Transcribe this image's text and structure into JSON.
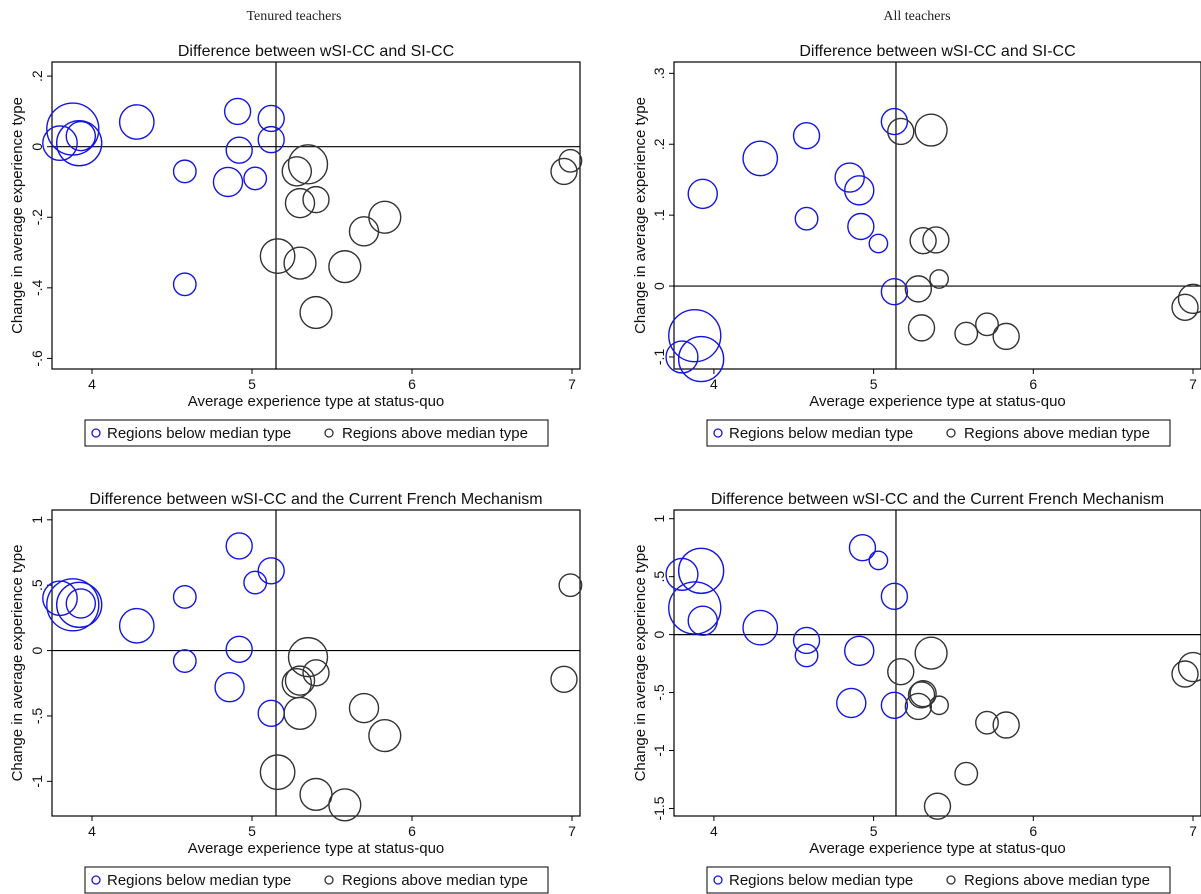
{
  "figure": {
    "column_titles": [
      "Tenured teachers",
      "All teachers"
    ]
  },
  "legend": {
    "below_label": "Regions below median type",
    "above_label": "Regions above median type"
  },
  "colors": {
    "below": "#1515e0",
    "above": "#333333",
    "frame": "#000000"
  },
  "chart_data": [
    {
      "type": "scatter",
      "title": "Difference between wSI-CC and SI-CC",
      "xlabel": "Average experience type at status-quo",
      "ylabel": "Change in average experience type",
      "xlim": [
        3.75,
        7.05
      ],
      "ylim": [
        -0.63,
        0.24
      ],
      "xticks": [
        4,
        5,
        6,
        7
      ],
      "yticks": [
        -0.6,
        -0.4,
        -0.2,
        0,
        0.2
      ],
      "ytick_labels": [
        "-.6",
        "-.4",
        "-.2",
        "0",
        ".2"
      ],
      "ref_x": 5.15,
      "ref_y": 0,
      "points": [
        {
          "x": 3.8,
          "y": 0.01,
          "w": 0.7,
          "group": "below"
        },
        {
          "x": 3.88,
          "y": 0.05,
          "w": 1.6,
          "group": "below"
        },
        {
          "x": 3.92,
          "y": 0.01,
          "w": 1.2,
          "group": "below"
        },
        {
          "x": 3.93,
          "y": 0.03,
          "w": 0.5,
          "group": "below"
        },
        {
          "x": 4.28,
          "y": 0.07,
          "w": 0.7,
          "group": "below"
        },
        {
          "x": 4.58,
          "y": -0.07,
          "w": 0.3,
          "group": "below"
        },
        {
          "x": 4.58,
          "y": -0.39,
          "w": 0.3,
          "group": "below"
        },
        {
          "x": 4.85,
          "y": -0.1,
          "w": 0.5,
          "group": "below"
        },
        {
          "x": 4.91,
          "y": 0.1,
          "w": 0.4,
          "group": "below"
        },
        {
          "x": 4.92,
          "y": -0.01,
          "w": 0.4,
          "group": "below"
        },
        {
          "x": 5.02,
          "y": -0.09,
          "w": 0.3,
          "group": "below"
        },
        {
          "x": 5.12,
          "y": 0.08,
          "w": 0.4,
          "group": "below"
        },
        {
          "x": 5.12,
          "y": 0.02,
          "w": 0.4,
          "group": "below"
        },
        {
          "x": 5.16,
          "y": -0.31,
          "w": 0.7,
          "group": "above"
        },
        {
          "x": 5.28,
          "y": -0.07,
          "w": 0.5,
          "group": "above"
        },
        {
          "x": 5.3,
          "y": -0.16,
          "w": 0.5,
          "group": "above"
        },
        {
          "x": 5.3,
          "y": -0.33,
          "w": 0.6,
          "group": "above"
        },
        {
          "x": 5.35,
          "y": -0.05,
          "w": 0.9,
          "group": "above"
        },
        {
          "x": 5.4,
          "y": -0.15,
          "w": 0.4,
          "group": "above"
        },
        {
          "x": 5.4,
          "y": -0.47,
          "w": 0.6,
          "group": "above"
        },
        {
          "x": 5.58,
          "y": -0.34,
          "w": 0.6,
          "group": "above"
        },
        {
          "x": 5.7,
          "y": -0.24,
          "w": 0.5,
          "group": "above"
        },
        {
          "x": 5.83,
          "y": -0.2,
          "w": 0.6,
          "group": "above"
        },
        {
          "x": 6.95,
          "y": -0.07,
          "w": 0.4,
          "group": "above"
        },
        {
          "x": 6.99,
          "y": -0.04,
          "w": 0.3,
          "group": "above"
        }
      ]
    },
    {
      "type": "scatter",
      "title": "Difference between wSI-CC and SI-CC",
      "xlabel": "Average experience type at status-quo",
      "ylabel": "Change in average experience type",
      "xlim": [
        3.75,
        7.05
      ],
      "ylim": [
        -0.117,
        0.316
      ],
      "xticks": [
        4,
        5,
        6,
        7
      ],
      "yticks": [
        -0.1,
        0,
        0.1,
        0.2,
        0.3
      ],
      "ytick_labels": [
        "-.1",
        "0",
        ".1",
        ".2",
        ".3"
      ],
      "ref_x": 5.14,
      "ref_y": 0,
      "points": [
        {
          "x": 3.8,
          "y": -0.1,
          "w": 0.6,
          "group": "below"
        },
        {
          "x": 3.88,
          "y": -0.07,
          "w": 1.6,
          "group": "below"
        },
        {
          "x": 3.92,
          "y": -0.103,
          "w": 1.2,
          "group": "below"
        },
        {
          "x": 3.93,
          "y": 0.13,
          "w": 0.5,
          "group": "below"
        },
        {
          "x": 4.29,
          "y": 0.18,
          "w": 0.7,
          "group": "below"
        },
        {
          "x": 4.58,
          "y": 0.212,
          "w": 0.4,
          "group": "below"
        },
        {
          "x": 4.58,
          "y": 0.095,
          "w": 0.3,
          "group": "below"
        },
        {
          "x": 4.85,
          "y": 0.153,
          "w": 0.5,
          "group": "below"
        },
        {
          "x": 4.91,
          "y": 0.135,
          "w": 0.5,
          "group": "below"
        },
        {
          "x": 4.92,
          "y": 0.084,
          "w": 0.4,
          "group": "below"
        },
        {
          "x": 5.03,
          "y": 0.06,
          "w": 0.2,
          "group": "below"
        },
        {
          "x": 5.13,
          "y": 0.232,
          "w": 0.4,
          "group": "below"
        },
        {
          "x": 5.13,
          "y": -0.008,
          "w": 0.4,
          "group": "below"
        },
        {
          "x": 5.17,
          "y": 0.218,
          "w": 0.4,
          "group": "above"
        },
        {
          "x": 5.28,
          "y": -0.004,
          "w": 0.4,
          "group": "above"
        },
        {
          "x": 5.3,
          "y": -0.059,
          "w": 0.4,
          "group": "above"
        },
        {
          "x": 5.31,
          "y": 0.064,
          "w": 0.4,
          "group": "above"
        },
        {
          "x": 5.36,
          "y": 0.22,
          "w": 0.6,
          "group": "above"
        },
        {
          "x": 5.39,
          "y": 0.065,
          "w": 0.4,
          "group": "above"
        },
        {
          "x": 5.41,
          "y": 0.01,
          "w": 0.2,
          "group": "above"
        },
        {
          "x": 5.58,
          "y": -0.067,
          "w": 0.3,
          "group": "above"
        },
        {
          "x": 5.71,
          "y": -0.054,
          "w": 0.3,
          "group": "above"
        },
        {
          "x": 5.83,
          "y": -0.071,
          "w": 0.4,
          "group": "above"
        },
        {
          "x": 6.95,
          "y": -0.03,
          "w": 0.4,
          "group": "above"
        },
        {
          "x": 7.0,
          "y": -0.018,
          "w": 0.5,
          "group": "above"
        }
      ]
    },
    {
      "type": "scatter",
      "title": "Difference between wSI-CC and the Current French Mechanism",
      "xlabel": "Average experience type at status-quo",
      "ylabel": "Change in average experience type",
      "xlim": [
        3.75,
        7.05
      ],
      "ylim": [
        -1.265,
        1.075
      ],
      "xticks": [
        4,
        5,
        6,
        7
      ],
      "yticks": [
        -1,
        -0.5,
        0,
        0.5,
        1
      ],
      "ytick_labels": [
        "-1",
        "-.5",
        "0",
        ".5",
        "1"
      ],
      "ref_x": 5.15,
      "ref_y": 0,
      "points": [
        {
          "x": 3.8,
          "y": 0.4,
          "w": 0.7,
          "group": "below"
        },
        {
          "x": 3.88,
          "y": 0.35,
          "w": 1.6,
          "group": "below"
        },
        {
          "x": 3.92,
          "y": 0.35,
          "w": 1.2,
          "group": "below"
        },
        {
          "x": 3.93,
          "y": 0.36,
          "w": 0.5,
          "group": "below"
        },
        {
          "x": 4.28,
          "y": 0.19,
          "w": 0.7,
          "group": "below"
        },
        {
          "x": 4.58,
          "y": 0.41,
          "w": 0.3,
          "group": "below"
        },
        {
          "x": 4.58,
          "y": -0.08,
          "w": 0.3,
          "group": "below"
        },
        {
          "x": 4.86,
          "y": -0.28,
          "w": 0.5,
          "group": "below"
        },
        {
          "x": 4.92,
          "y": 0.8,
          "w": 0.4,
          "group": "below"
        },
        {
          "x": 4.92,
          "y": 0.01,
          "w": 0.4,
          "group": "below"
        },
        {
          "x": 5.02,
          "y": 0.52,
          "w": 0.3,
          "group": "below"
        },
        {
          "x": 5.12,
          "y": 0.61,
          "w": 0.4,
          "group": "below"
        },
        {
          "x": 5.12,
          "y": -0.48,
          "w": 0.4,
          "group": "below"
        },
        {
          "x": 5.16,
          "y": -0.93,
          "w": 0.7,
          "group": "above"
        },
        {
          "x": 5.28,
          "y": -0.25,
          "w": 0.5,
          "group": "above"
        },
        {
          "x": 5.3,
          "y": -0.23,
          "w": 0.5,
          "group": "above"
        },
        {
          "x": 5.3,
          "y": -0.48,
          "w": 0.6,
          "group": "above"
        },
        {
          "x": 5.35,
          "y": -0.05,
          "w": 0.9,
          "group": "above"
        },
        {
          "x": 5.4,
          "y": -0.17,
          "w": 0.4,
          "group": "above"
        },
        {
          "x": 5.4,
          "y": -1.1,
          "w": 0.6,
          "group": "above"
        },
        {
          "x": 5.58,
          "y": -1.18,
          "w": 0.6,
          "group": "above"
        },
        {
          "x": 5.7,
          "y": -0.44,
          "w": 0.5,
          "group": "above"
        },
        {
          "x": 5.83,
          "y": -0.65,
          "w": 0.6,
          "group": "above"
        },
        {
          "x": 6.95,
          "y": -0.22,
          "w": 0.4,
          "group": "above"
        },
        {
          "x": 6.99,
          "y": 0.5,
          "w": 0.3,
          "group": "above"
        }
      ]
    },
    {
      "type": "scatter",
      "title": "Difference between wSI-CC and the Current French Mechanism",
      "xlabel": "Average experience type at status-quo",
      "ylabel": "Change in average experience type",
      "xlim": [
        3.75,
        7.05
      ],
      "ylim": [
        -1.565,
        1.075
      ],
      "xticks": [
        4,
        5,
        6,
        7
      ],
      "yticks": [
        -1.5,
        -1,
        -0.5,
        0,
        0.5,
        1
      ],
      "ytick_labels": [
        "-1.5",
        "-1",
        "-.5",
        "0",
        ".5",
        "1"
      ],
      "ref_x": 5.14,
      "ref_y": 0,
      "points": [
        {
          "x": 3.8,
          "y": 0.52,
          "w": 0.6,
          "group": "below"
        },
        {
          "x": 3.88,
          "y": 0.23,
          "w": 1.6,
          "group": "below"
        },
        {
          "x": 3.92,
          "y": 0.55,
          "w": 1.2,
          "group": "below"
        },
        {
          "x": 3.93,
          "y": 0.12,
          "w": 0.5,
          "group": "below"
        },
        {
          "x": 4.29,
          "y": 0.06,
          "w": 0.7,
          "group": "below"
        },
        {
          "x": 4.58,
          "y": -0.05,
          "w": 0.4,
          "group": "below"
        },
        {
          "x": 4.58,
          "y": -0.18,
          "w": 0.3,
          "group": "below"
        },
        {
          "x": 4.86,
          "y": -0.59,
          "w": 0.5,
          "group": "below"
        },
        {
          "x": 4.91,
          "y": -0.14,
          "w": 0.5,
          "group": "below"
        },
        {
          "x": 4.93,
          "y": 0.75,
          "w": 0.4,
          "group": "below"
        },
        {
          "x": 5.03,
          "y": 0.64,
          "w": 0.2,
          "group": "below"
        },
        {
          "x": 5.13,
          "y": 0.33,
          "w": 0.4,
          "group": "below"
        },
        {
          "x": 5.13,
          "y": -0.61,
          "w": 0.4,
          "group": "below"
        },
        {
          "x": 5.17,
          "y": -0.32,
          "w": 0.4,
          "group": "above"
        },
        {
          "x": 5.28,
          "y": -0.62,
          "w": 0.4,
          "group": "above"
        },
        {
          "x": 5.3,
          "y": -0.52,
          "w": 0.4,
          "group": "above"
        },
        {
          "x": 5.31,
          "y": -0.51,
          "w": 0.4,
          "group": "above"
        },
        {
          "x": 5.36,
          "y": -0.16,
          "w": 0.6,
          "group": "above"
        },
        {
          "x": 5.4,
          "y": -1.48,
          "w": 0.4,
          "group": "above"
        },
        {
          "x": 5.41,
          "y": -0.61,
          "w": 0.2,
          "group": "above"
        },
        {
          "x": 5.58,
          "y": -1.2,
          "w": 0.3,
          "group": "above"
        },
        {
          "x": 5.71,
          "y": -0.76,
          "w": 0.3,
          "group": "above"
        },
        {
          "x": 5.83,
          "y": -0.78,
          "w": 0.4,
          "group": "above"
        },
        {
          "x": 6.95,
          "y": -0.34,
          "w": 0.4,
          "group": "above"
        },
        {
          "x": 7.0,
          "y": -0.28,
          "w": 0.5,
          "group": "above"
        }
      ]
    }
  ]
}
